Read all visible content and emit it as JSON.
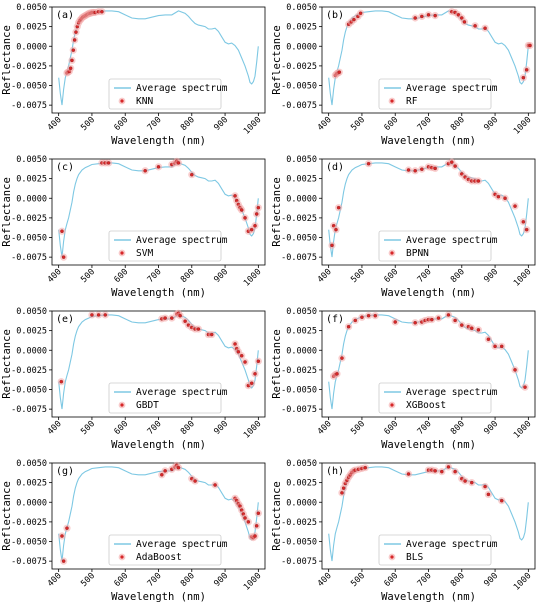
{
  "chart_data": [
    {
      "panel": "(a)",
      "type": "line",
      "xlabel": "Wavelength (nm)",
      "ylabel": "Reflectance",
      "xlim": [
        380,
        1020
      ],
      "ylim": [
        -0.0085,
        0.005
      ],
      "xticks": [
        400,
        500,
        600,
        700,
        800,
        900,
        1000
      ],
      "yticks": [
        -0.0075,
        -0.005,
        -0.0025,
        0.0,
        0.0025,
        0.005
      ],
      "ytick_labels": [
        "-0.0075",
        "-0.0050",
        "-0.0025",
        "0.0000",
        "0.0025",
        "0.0050"
      ],
      "grid": false,
      "legend_position": "bottom-center",
      "series": [
        {
          "name": "Average spectrum",
          "kind": "line",
          "color": "#7ec8e3"
        },
        {
          "name": "KNN",
          "kind": "scatter",
          "color": "#d62728",
          "x": [
            425,
            428,
            432,
            436,
            440,
            444,
            448,
            452,
            456,
            460,
            464,
            468,
            472,
            476,
            480,
            484,
            488,
            492,
            496,
            500,
            505,
            510,
            520,
            530
          ],
          "y": [
            -0.0034,
            -0.0033,
            -0.0032,
            -0.0028,
            -0.0018,
            -0.0005,
            0.0008,
            0.0018,
            0.0025,
            0.003,
            0.0033,
            0.0035,
            0.0037,
            0.0038,
            0.0039,
            0.004,
            0.0041,
            0.0042,
            0.0042,
            0.0043,
            0.0043,
            0.0043,
            0.0044,
            0.0044
          ]
        }
      ]
    },
    {
      "panel": "(b)",
      "type": "line",
      "xlabel": "Wavelength (nm)",
      "ylabel": "Reflectance",
      "xlim": [
        380,
        1020
      ],
      "ylim": [
        -0.0085,
        0.005
      ],
      "xticks": [
        400,
        500,
        600,
        700,
        800,
        900,
        1000
      ],
      "yticks": [
        -0.0075,
        -0.005,
        -0.0025,
        0.0,
        0.0025,
        0.005
      ],
      "ytick_labels": [
        "-0.0075",
        "-0.0050",
        "-0.0025",
        "0.0000",
        "0.0025",
        "0.0050"
      ],
      "grid": false,
      "legend_position": "bottom-center",
      "series": [
        {
          "name": "Average spectrum",
          "kind": "line",
          "color": "#7ec8e3"
        },
        {
          "name": "RF",
          "kind": "scatter",
          "color": "#d62728",
          "x": [
            420,
            424,
            428,
            432,
            460,
            468,
            476,
            488,
            496,
            660,
            680,
            700,
            720,
            770,
            780,
            790,
            800,
            808,
            840,
            870,
            985,
            995,
            1000,
            1005
          ],
          "y": [
            -0.0037,
            -0.0035,
            -0.0034,
            -0.0033,
            0.0028,
            0.0031,
            0.0034,
            0.0038,
            0.0042,
            0.0036,
            0.0038,
            0.004,
            0.0039,
            0.0044,
            0.0043,
            0.004,
            0.0036,
            0.0031,
            0.0026,
            0.0023,
            -0.004,
            -0.003,
            0.0001,
            0.0001
          ]
        }
      ]
    },
    {
      "panel": "(c)",
      "type": "line",
      "xlabel": "Wavelength (nm)",
      "ylabel": "Reflectance",
      "xlim": [
        380,
        1020
      ],
      "ylim": [
        -0.0085,
        0.005
      ],
      "xticks": [
        400,
        500,
        600,
        700,
        800,
        900,
        1000
      ],
      "yticks": [
        -0.0075,
        -0.005,
        -0.0025,
        0.0,
        0.0025,
        0.005
      ],
      "ytick_labels": [
        "-0.0075",
        "-0.0050",
        "-0.0025",
        "0.0000",
        "0.0025",
        "0.0050"
      ],
      "grid": false,
      "legend_position": "bottom-center",
      "series": [
        {
          "name": "Average spectrum",
          "kind": "line",
          "color": "#7ec8e3"
        },
        {
          "name": "SVM",
          "kind": "scatter",
          "color": "#d62728",
          "x": [
            410,
            415,
            530,
            540,
            550,
            660,
            700,
            740,
            750,
            755,
            760,
            800,
            930,
            935,
            940,
            945,
            950,
            960,
            970,
            980,
            990,
            995,
            1000
          ],
          "y": [
            -0.0042,
            -0.0075,
            0.0045,
            0.0045,
            0.0045,
            0.0035,
            0.004,
            0.0043,
            0.0045,
            0.0047,
            0.0045,
            0.003,
            0.0003,
            -0.0003,
            -0.0008,
            -0.0012,
            -0.0015,
            -0.0025,
            -0.0042,
            -0.004,
            -0.0035,
            -0.002,
            -0.0012
          ]
        }
      ]
    },
    {
      "panel": "(d)",
      "type": "line",
      "xlabel": "Wavelength (nm)",
      "ylabel": "Reflectance",
      "xlim": [
        380,
        1020
      ],
      "ylim": [
        -0.0085,
        0.005
      ],
      "xticks": [
        400,
        500,
        600,
        700,
        800,
        900,
        1000
      ],
      "yticks": [
        -0.0075,
        -0.005,
        -0.0025,
        0.0,
        0.0025,
        0.005
      ],
      "ytick_labels": [
        "-0.0075",
        "-0.0050",
        "-0.0025",
        "0.0000",
        "0.0025",
        "0.0050"
      ],
      "grid": false,
      "legend_position": "bottom-center",
      "series": [
        {
          "name": "Average spectrum",
          "kind": "line",
          "color": "#7ec8e3"
        },
        {
          "name": "BPNN",
          "kind": "scatter",
          "color": "#d62728",
          "x": [
            410,
            415,
            422,
            430,
            520,
            640,
            660,
            680,
            700,
            710,
            720,
            760,
            770,
            780,
            800,
            810,
            820,
            830,
            840,
            850,
            900,
            910,
            930,
            960,
            985,
            995
          ],
          "y": [
            -0.006,
            -0.0035,
            -0.004,
            -0.0012,
            0.0044,
            0.0036,
            0.0035,
            0.0037,
            0.004,
            0.0039,
            0.0038,
            0.0044,
            0.0046,
            0.0041,
            0.0031,
            0.0027,
            0.0024,
            0.0022,
            0.0022,
            0.0022,
            0.0005,
            0.0002,
            0.0,
            -0.001,
            -0.003,
            -0.004
          ]
        }
      ]
    },
    {
      "panel": "(e)",
      "type": "line",
      "xlabel": "Wavelength (nm)",
      "ylabel": "Reflectance",
      "xlim": [
        380,
        1020
      ],
      "ylim": [
        -0.0085,
        0.005
      ],
      "xticks": [
        400,
        500,
        600,
        700,
        800,
        900,
        1000
      ],
      "yticks": [
        -0.0075,
        -0.005,
        -0.0025,
        0.0,
        0.0025,
        0.005
      ],
      "ytick_labels": [
        "-0.0075",
        "-0.0050",
        "-0.0025",
        "0.0000",
        "0.0025",
        "0.0050"
      ],
      "grid": false,
      "legend_position": "bottom-center",
      "series": [
        {
          "name": "Average spectrum",
          "kind": "line",
          "color": "#7ec8e3"
        },
        {
          "name": "GBDT",
          "kind": "scatter",
          "color": "#d62728",
          "x": [
            408,
            500,
            520,
            540,
            710,
            720,
            740,
            755,
            760,
            765,
            780,
            790,
            800,
            810,
            820,
            850,
            860,
            930,
            935,
            940,
            950,
            960,
            970,
            980,
            990,
            1000
          ],
          "y": [
            -0.004,
            0.0045,
            0.0045,
            0.0045,
            0.004,
            0.0041,
            0.0041,
            0.0046,
            0.0047,
            0.0044,
            0.0037,
            0.0032,
            0.0029,
            0.0027,
            0.0027,
            0.002,
            0.002,
            0.0008,
            0.0002,
            -0.0002,
            -0.0007,
            -0.0015,
            -0.0045,
            -0.0042,
            -0.003,
            -0.0014
          ]
        }
      ]
    },
    {
      "panel": "(f)",
      "type": "line",
      "xlabel": "Wavelength (nm)",
      "ylabel": "Reflectance",
      "xlim": [
        380,
        1020
      ],
      "ylim": [
        -0.0085,
        0.005
      ],
      "xticks": [
        400,
        500,
        600,
        700,
        800,
        900,
        1000
      ],
      "yticks": [
        -0.0075,
        -0.005,
        -0.0025,
        0.0,
        0.0025,
        0.005
      ],
      "ytick_labels": [
        "-0.0075",
        "-0.0050",
        "-0.0025",
        "0.0000",
        "0.0025",
        "0.0050"
      ],
      "grid": false,
      "legend_position": "bottom-center",
      "series": [
        {
          "name": "Average spectrum",
          "kind": "line",
          "color": "#7ec8e3"
        },
        {
          "name": "XGBoost",
          "kind": "scatter",
          "color": "#d62728",
          "x": [
            415,
            420,
            425,
            440,
            460,
            480,
            500,
            520,
            540,
            600,
            660,
            680,
            690,
            700,
            710,
            730,
            760,
            780,
            800,
            820,
            830,
            850,
            880,
            900,
            920,
            960,
            990
          ],
          "y": [
            -0.0033,
            -0.0031,
            -0.003,
            -0.001,
            0.003,
            0.0038,
            0.0042,
            0.0044,
            0.0044,
            0.0036,
            0.0035,
            0.0036,
            0.0038,
            0.0039,
            0.0039,
            0.0041,
            0.0045,
            0.0038,
            0.0032,
            0.003,
            0.0028,
            0.0026,
            0.0014,
            0.0005,
            0.0005,
            -0.0025,
            -0.0047
          ]
        }
      ]
    },
    {
      "panel": "(g)",
      "type": "line",
      "xlabel": "Wavelength (nm)",
      "ylabel": "Reflectance",
      "xlim": [
        380,
        1020
      ],
      "ylim": [
        -0.0085,
        0.005
      ],
      "xticks": [
        400,
        500,
        600,
        700,
        800,
        900,
        1000
      ],
      "yticks": [
        -0.0075,
        -0.005,
        -0.0025,
        0.0,
        0.0025,
        0.005
      ],
      "ytick_labels": [
        "-0.0075",
        "-0.0050",
        "-0.0025",
        "0.0000",
        "0.0025",
        "0.0050"
      ],
      "grid": false,
      "legend_position": "bottom-center",
      "series": [
        {
          "name": "Average spectrum",
          "kind": "line",
          "color": "#7ec8e3"
        },
        {
          "name": "AdaBoost",
          "kind": "scatter",
          "color": "#d62728",
          "x": [
            410,
            415,
            425,
            710,
            720,
            740,
            750,
            755,
            760,
            800,
            810,
            870,
            930,
            935,
            940,
            945,
            950,
            955,
            960,
            970,
            980,
            985,
            990,
            995,
            1000
          ],
          "y": [
            -0.0043,
            -0.0075,
            -0.0033,
            0.0035,
            0.004,
            0.0042,
            0.0045,
            0.0047,
            0.0044,
            0.003,
            0.0027,
            0.0022,
            0.0005,
            0.0002,
            -0.0002,
            -0.0005,
            -0.001,
            -0.0015,
            -0.002,
            -0.0025,
            -0.0044,
            -0.0045,
            -0.0043,
            -0.003,
            -0.0014
          ]
        }
      ]
    },
    {
      "panel": "(h)",
      "type": "line",
      "xlabel": "Wavelength (nm)",
      "ylabel": "Reflectance",
      "xlim": [
        380,
        1020
      ],
      "ylim": [
        -0.0085,
        0.005
      ],
      "xticks": [
        400,
        500,
        600,
        700,
        800,
        900,
        1000
      ],
      "yticks": [
        -0.0075,
        -0.005,
        -0.0025,
        0.0,
        0.0025,
        0.005
      ],
      "ytick_labels": [
        "-0.0075",
        "-0.0050",
        "-0.0025",
        "0.0000",
        "0.0025",
        "0.0050"
      ],
      "grid": false,
      "legend_position": "bottom-center",
      "series": [
        {
          "name": "Average spectrum",
          "kind": "line",
          "color": "#7ec8e3"
        },
        {
          "name": "BLS",
          "kind": "scatter",
          "color": "#d62728",
          "x": [
            440,
            445,
            450,
            455,
            460,
            465,
            470,
            475,
            480,
            490,
            500,
            510,
            640,
            700,
            710,
            720,
            740,
            760,
            780,
            800,
            810,
            830,
            870,
            880,
            920
          ],
          "y": [
            0.0012,
            0.0018,
            0.0024,
            0.0028,
            0.0032,
            0.0035,
            0.0038,
            0.004,
            0.0041,
            0.0042,
            0.0043,
            0.0044,
            0.0036,
            0.0041,
            0.0041,
            0.004,
            0.0039,
            0.0045,
            0.0039,
            0.003,
            0.0027,
            0.0025,
            0.002,
            0.001,
            0.0002
          ]
        }
      ]
    }
  ],
  "average_spectrum": {
    "x": [
      400,
      405,
      410,
      415,
      420,
      425,
      430,
      435,
      440,
      445,
      450,
      455,
      460,
      470,
      480,
      490,
      500,
      520,
      540,
      560,
      580,
      600,
      620,
      640,
      660,
      680,
      700,
      720,
      740,
      760,
      780,
      790,
      800,
      810,
      820,
      830,
      840,
      850,
      860,
      870,
      880,
      890,
      900,
      910,
      920,
      930,
      940,
      950,
      960,
      970,
      975,
      980,
      985,
      990,
      995,
      1000
    ],
    "y": [
      -0.004,
      -0.006,
      -0.0075,
      -0.0055,
      -0.004,
      -0.0032,
      -0.0025,
      -0.0015,
      -0.0005,
      0.0008,
      0.0018,
      0.0025,
      0.003,
      0.0036,
      0.0039,
      0.0041,
      0.0043,
      0.0044,
      0.0045,
      0.0045,
      0.0044,
      0.004,
      0.0036,
      0.0035,
      0.0035,
      0.0037,
      0.0039,
      0.004,
      0.004,
      0.0045,
      0.0042,
      0.0038,
      0.0033,
      0.0029,
      0.0027,
      0.0026,
      0.0025,
      0.0022,
      0.0022,
      0.0023,
      0.0019,
      0.0012,
      0.0005,
      0.0003,
      0.0004,
      0.0001,
      -0.0005,
      -0.0015,
      -0.0025,
      -0.0038,
      -0.0046,
      -0.0048,
      -0.0045,
      -0.0038,
      -0.002,
      0.0
    ]
  }
}
